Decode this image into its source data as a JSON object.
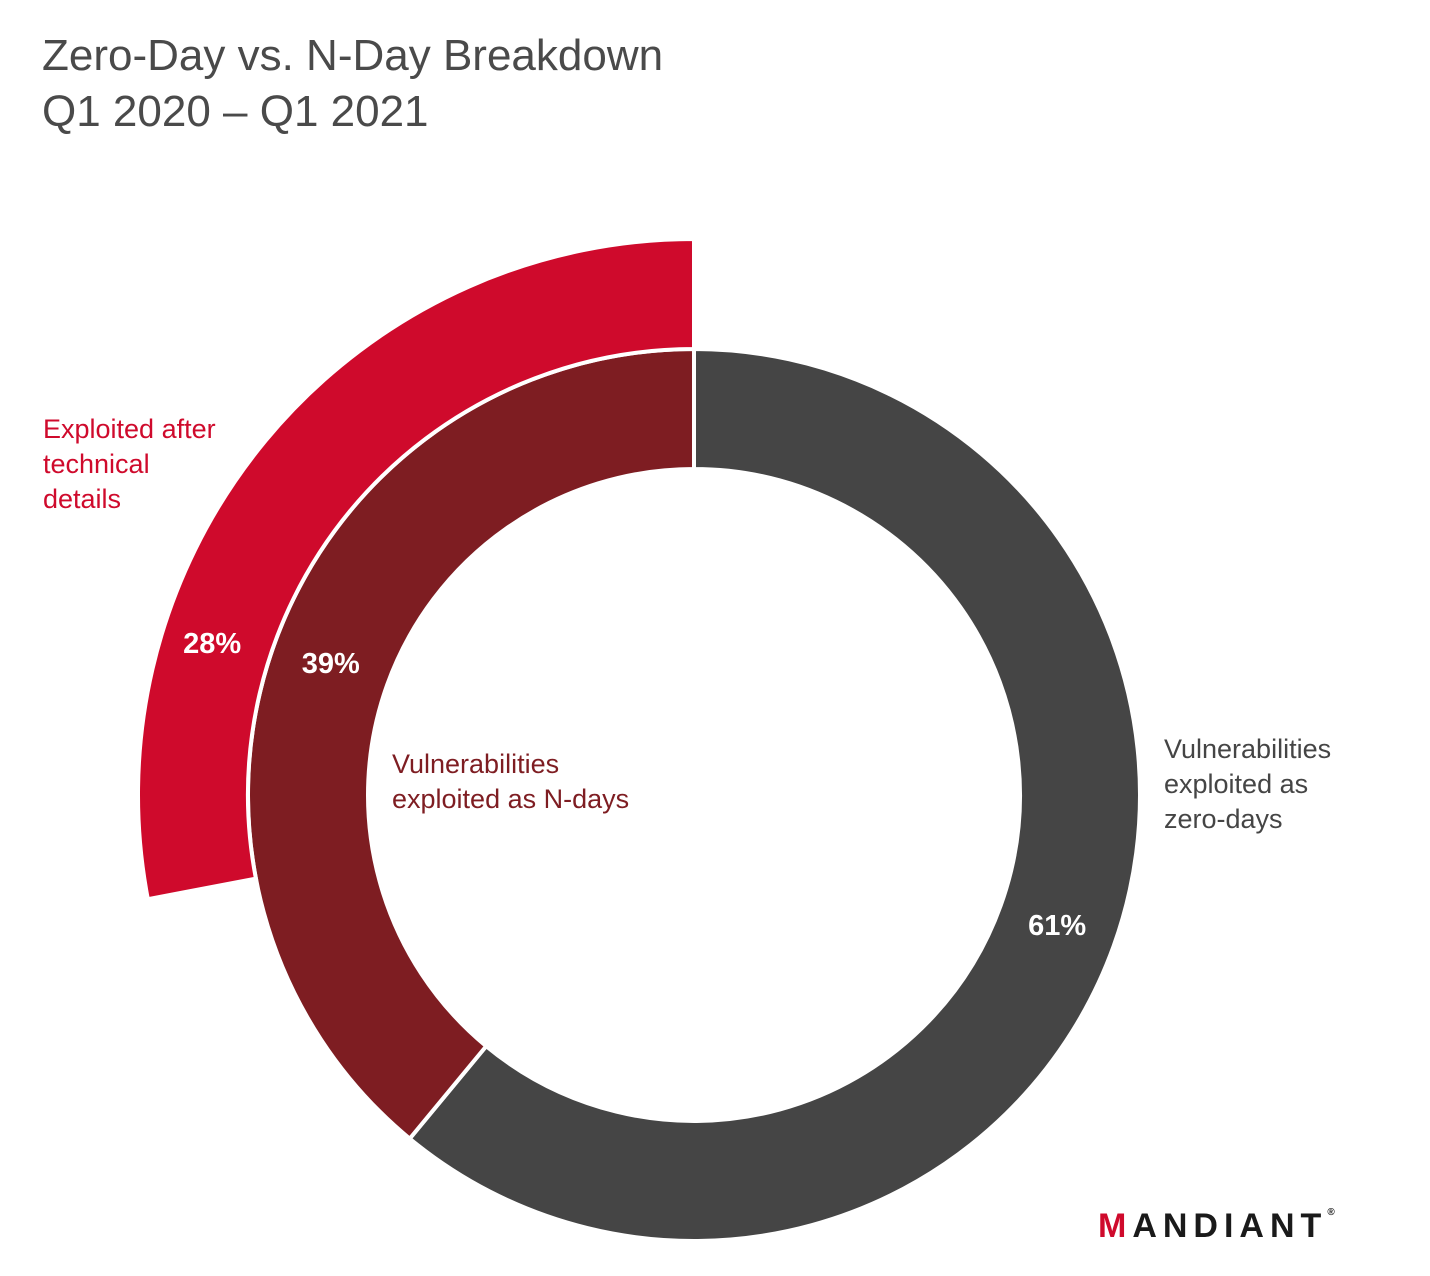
{
  "title": {
    "line1": "Zero-Day vs. N-Day Breakdown",
    "line2": "Q1 2020 – Q1 2021"
  },
  "chart_data": {
    "type": "pie",
    "variant": "nested-donut",
    "title": "Zero-Day vs. N-Day Breakdown Q1 2020 – Q1 2021",
    "rings": [
      {
        "ring": "inner",
        "slices": [
          {
            "label": "Vulnerabilities exploited as zero-days",
            "value": 61,
            "value_label": "61%",
            "color": "#454545"
          },
          {
            "label": "Vulnerabilities exploited as N-days",
            "value": 39,
            "value_label": "39%",
            "color": "#7e1d22"
          }
        ]
      },
      {
        "ring": "outer",
        "slices": [
          {
            "label": "Exploited after technical details",
            "value": 28,
            "value_label": "28%",
            "color": "#cf0a2c"
          }
        ]
      }
    ]
  },
  "labels": {
    "outer_line1": "Exploited after",
    "outer_line2": "technical",
    "outer_line3": "details",
    "inner_line1": "Vulnerabilities",
    "inner_line2": "exploited as N-days",
    "zero_line1": "Vulnerabilities",
    "zero_line2": "exploited as",
    "zero_line3": "zero-days"
  },
  "logo": {
    "first": "M",
    "rest": "ANDIANT",
    "mark": "®"
  }
}
